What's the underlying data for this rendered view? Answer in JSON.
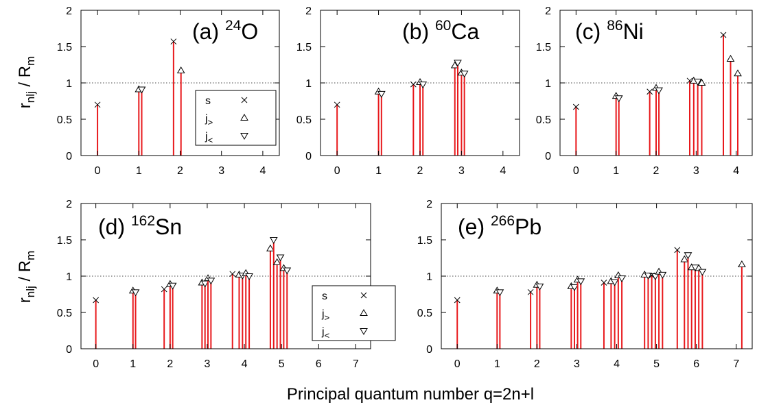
{
  "figure": {
    "xlabel": "Principal quantum number q=2n+l",
    "ylabel_main": "r",
    "ylabel_sub": "nlj",
    "ylabel_div": " / R",
    "ylabel_div_sub": "m",
    "legend": [
      {
        "label": "s",
        "sub": "",
        "marker": "cross"
      },
      {
        "label": "j",
        "sub": ">",
        "marker": "tri-up"
      },
      {
        "label": "j",
        "sub": "<",
        "marker": "tri-down"
      }
    ]
  },
  "chart_data": [
    {
      "type": "bar",
      "panel": "a",
      "title_prefix": "(a) ",
      "title_mass": "24",
      "title_element": "O",
      "xlim": [
        -0.4,
        4.4
      ],
      "ylim": [
        0,
        2
      ],
      "xticks": [
        0,
        1,
        2,
        3,
        4
      ],
      "yticks": [
        0,
        0.5,
        1,
        1.5,
        2
      ],
      "reference_line": 1,
      "legend_shown": true,
      "legend_position": "center-right",
      "points": [
        {
          "x": 0.0,
          "y": 0.7,
          "kind": "s"
        },
        {
          "x": 1.0,
          "y": 0.91,
          "kind": "jgt"
        },
        {
          "x": 1.07,
          "y": 0.91,
          "kind": "jlt"
        },
        {
          "x": 1.84,
          "y": 1.57,
          "kind": "s"
        },
        {
          "x": 2.02,
          "y": 1.17,
          "kind": "jgt"
        }
      ]
    },
    {
      "type": "bar",
      "panel": "b",
      "title_prefix": "(b) ",
      "title_mass": "60",
      "title_element": "Ca",
      "xlim": [
        -0.4,
        4.4
      ],
      "ylim": [
        0,
        2
      ],
      "xticks": [
        0,
        1,
        2,
        3,
        4
      ],
      "yticks": [
        0,
        0.5,
        1,
        1.5,
        2
      ],
      "reference_line": 1,
      "legend_shown": false,
      "points": [
        {
          "x": 0.0,
          "y": 0.7,
          "kind": "s"
        },
        {
          "x": 1.0,
          "y": 0.88,
          "kind": "jgt"
        },
        {
          "x": 1.07,
          "y": 0.85,
          "kind": "jlt"
        },
        {
          "x": 1.84,
          "y": 0.98,
          "kind": "s"
        },
        {
          "x": 2.0,
          "y": 1.01,
          "kind": "jgt"
        },
        {
          "x": 2.07,
          "y": 0.98,
          "kind": "jlt"
        },
        {
          "x": 2.84,
          "y": 1.24,
          "kind": "jgt"
        },
        {
          "x": 2.91,
          "y": 1.28,
          "kind": "jlt"
        },
        {
          "x": 3.0,
          "y": 1.14,
          "kind": "jgt"
        },
        {
          "x": 3.07,
          "y": 1.13,
          "kind": "jlt"
        }
      ]
    },
    {
      "type": "bar",
      "panel": "c",
      "title_prefix": "(c) ",
      "title_mass": "86",
      "title_element": "Ni",
      "xlim": [
        -0.4,
        4.4
      ],
      "ylim": [
        0,
        2
      ],
      "xticks": [
        0,
        1,
        2,
        3,
        4
      ],
      "yticks": [
        0,
        0.5,
        1,
        1.5,
        2
      ],
      "reference_line": 1,
      "legend_shown": false,
      "points": [
        {
          "x": 0.0,
          "y": 0.67,
          "kind": "s"
        },
        {
          "x": 1.0,
          "y": 0.82,
          "kind": "jgt"
        },
        {
          "x": 1.07,
          "y": 0.79,
          "kind": "jlt"
        },
        {
          "x": 1.84,
          "y": 0.88,
          "kind": "s"
        },
        {
          "x": 2.0,
          "y": 0.93,
          "kind": "jgt"
        },
        {
          "x": 2.07,
          "y": 0.9,
          "kind": "jlt"
        },
        {
          "x": 2.84,
          "y": 1.03,
          "kind": "s"
        },
        {
          "x": 2.94,
          "y": 1.03,
          "kind": "jgt"
        },
        {
          "x": 3.04,
          "y": 1.02,
          "kind": "jlt"
        },
        {
          "x": 3.14,
          "y": 1.0,
          "kind": "jgt"
        },
        {
          "x": 3.68,
          "y": 1.66,
          "kind": "s"
        },
        {
          "x": 3.86,
          "y": 1.33,
          "kind": "jgt"
        },
        {
          "x": 4.04,
          "y": 1.13,
          "kind": "jgt"
        }
      ]
    },
    {
      "type": "bar",
      "panel": "d",
      "title_prefix": "(d) ",
      "title_mass": "162",
      "title_element": "Sn",
      "xlim": [
        -0.4,
        7.4
      ],
      "ylim": [
        0,
        2
      ],
      "xticks": [
        0,
        1,
        2,
        3,
        4,
        5,
        6,
        7
      ],
      "yticks": [
        0,
        0.5,
        1,
        1.5,
        2
      ],
      "reference_line": 1,
      "legend_shown": true,
      "legend_position": "lower-right",
      "points": [
        {
          "x": 0.0,
          "y": 0.67,
          "kind": "s"
        },
        {
          "x": 1.0,
          "y": 0.8,
          "kind": "jgt"
        },
        {
          "x": 1.07,
          "y": 0.78,
          "kind": "jlt"
        },
        {
          "x": 1.84,
          "y": 0.82,
          "kind": "s"
        },
        {
          "x": 2.0,
          "y": 0.89,
          "kind": "jgt"
        },
        {
          "x": 2.07,
          "y": 0.87,
          "kind": "jlt"
        },
        {
          "x": 2.86,
          "y": 0.91,
          "kind": "jgt"
        },
        {
          "x": 2.94,
          "y": 0.9,
          "kind": "jlt"
        },
        {
          "x": 3.02,
          "y": 0.97,
          "kind": "jgt"
        },
        {
          "x": 3.1,
          "y": 0.94,
          "kind": "jlt"
        },
        {
          "x": 3.68,
          "y": 1.03,
          "kind": "s"
        },
        {
          "x": 3.86,
          "y": 1.02,
          "kind": "jgt"
        },
        {
          "x": 3.95,
          "y": 1.01,
          "kind": "jlt"
        },
        {
          "x": 4.04,
          "y": 1.04,
          "kind": "jgt"
        },
        {
          "x": 4.13,
          "y": 1.0,
          "kind": "jlt"
        },
        {
          "x": 4.7,
          "y": 1.38,
          "kind": "jgt"
        },
        {
          "x": 4.79,
          "y": 1.5,
          "kind": "jlt"
        },
        {
          "x": 4.88,
          "y": 1.19,
          "kind": "jgt"
        },
        {
          "x": 4.97,
          "y": 1.26,
          "kind": "jlt"
        },
        {
          "x": 5.06,
          "y": 1.11,
          "kind": "jgt"
        },
        {
          "x": 5.15,
          "y": 1.08,
          "kind": "jlt"
        }
      ]
    },
    {
      "type": "bar",
      "panel": "e",
      "title_prefix": "(e) ",
      "title_mass": "266",
      "title_element": "Pb",
      "xlim": [
        -0.4,
        7.4
      ],
      "ylim": [
        0,
        2
      ],
      "xticks": [
        0,
        1,
        2,
        3,
        4,
        5,
        6,
        7
      ],
      "yticks": [
        0,
        0.5,
        1,
        1.5,
        2
      ],
      "reference_line": 1,
      "legend_shown": false,
      "points": [
        {
          "x": 0.0,
          "y": 0.67,
          "kind": "s"
        },
        {
          "x": 1.0,
          "y": 0.8,
          "kind": "jgt"
        },
        {
          "x": 1.07,
          "y": 0.78,
          "kind": "jlt"
        },
        {
          "x": 1.84,
          "y": 0.78,
          "kind": "s"
        },
        {
          "x": 2.0,
          "y": 0.88,
          "kind": "jgt"
        },
        {
          "x": 2.07,
          "y": 0.86,
          "kind": "jlt"
        },
        {
          "x": 2.86,
          "y": 0.86,
          "kind": "jgt"
        },
        {
          "x": 2.94,
          "y": 0.85,
          "kind": "jlt"
        },
        {
          "x": 3.02,
          "y": 0.95,
          "kind": "jgt"
        },
        {
          "x": 3.1,
          "y": 0.93,
          "kind": "jlt"
        },
        {
          "x": 3.68,
          "y": 0.91,
          "kind": "s"
        },
        {
          "x": 3.86,
          "y": 0.93,
          "kind": "jgt"
        },
        {
          "x": 3.95,
          "y": 0.92,
          "kind": "jlt"
        },
        {
          "x": 4.04,
          "y": 1.01,
          "kind": "jgt"
        },
        {
          "x": 4.13,
          "y": 0.97,
          "kind": "jlt"
        },
        {
          "x": 4.7,
          "y": 1.02,
          "kind": "jgt"
        },
        {
          "x": 4.79,
          "y": 1.01,
          "kind": "jlt"
        },
        {
          "x": 4.88,
          "y": 1.01,
          "kind": "s"
        },
        {
          "x": 4.97,
          "y": 1.0,
          "kind": "jlt"
        },
        {
          "x": 5.06,
          "y": 1.06,
          "kind": "jgt"
        },
        {
          "x": 5.15,
          "y": 1.02,
          "kind": "jlt"
        },
        {
          "x": 5.52,
          "y": 1.36,
          "kind": "s"
        },
        {
          "x": 5.7,
          "y": 1.23,
          "kind": "jgt"
        },
        {
          "x": 5.79,
          "y": 1.29,
          "kind": "jlt"
        },
        {
          "x": 5.88,
          "y": 1.12,
          "kind": "jgt"
        },
        {
          "x": 5.97,
          "y": 1.12,
          "kind": "jlt"
        },
        {
          "x": 6.06,
          "y": 1.11,
          "kind": "jgt"
        },
        {
          "x": 6.15,
          "y": 1.06,
          "kind": "jlt"
        },
        {
          "x": 7.14,
          "y": 1.16,
          "kind": "jgt"
        }
      ]
    }
  ],
  "colors": {
    "bar": "#e8191c",
    "axis": "#000000",
    "reference_line": "#444444"
  }
}
